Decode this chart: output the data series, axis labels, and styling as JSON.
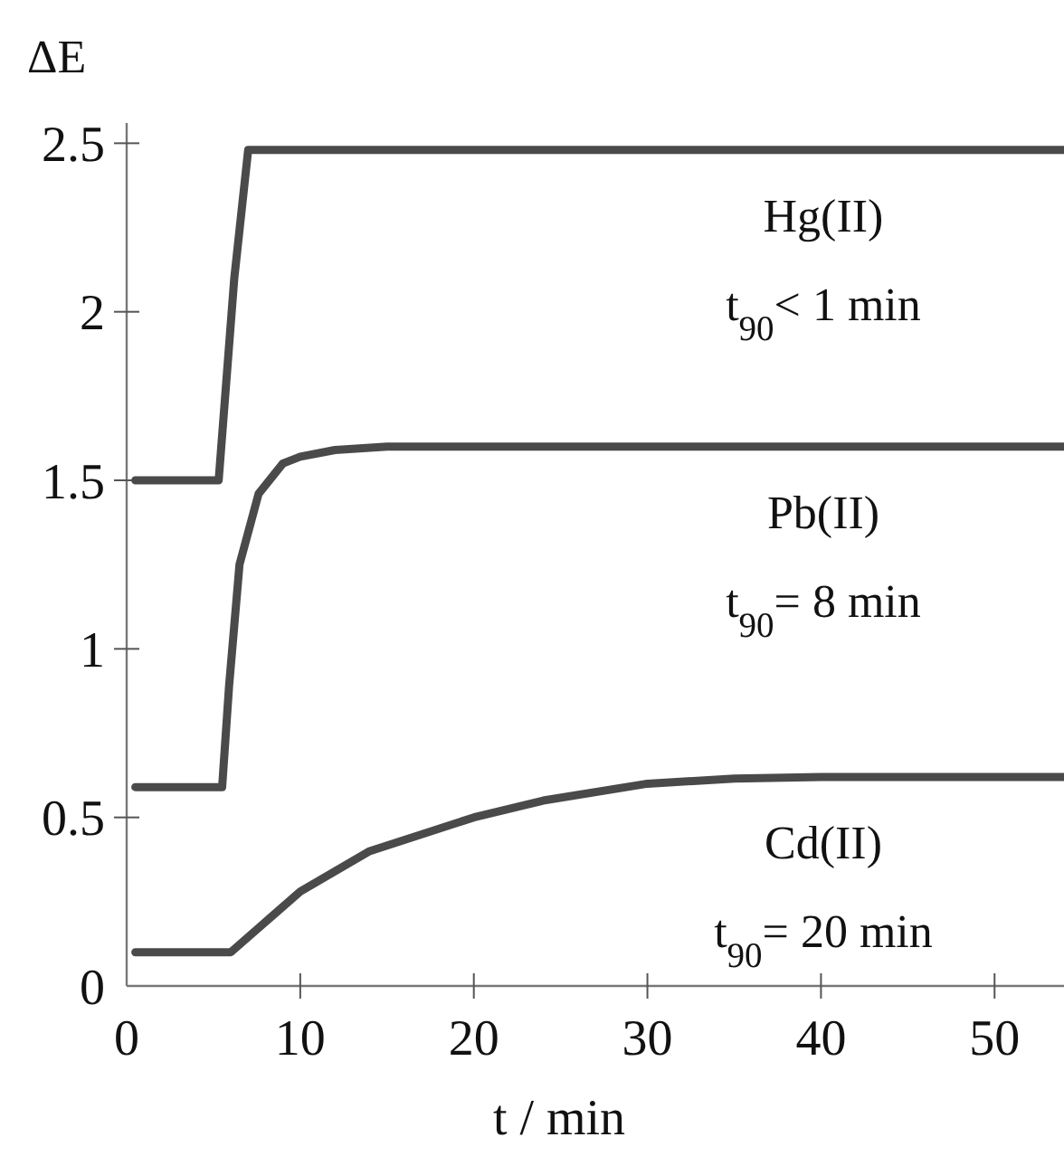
{
  "chart_data": {
    "type": "line",
    "xlabel": "t / min",
    "ylabel": "ΔE",
    "xlim": [
      0,
      54
    ],
    "ylim": [
      0,
      2.56
    ],
    "xticks": [
      0,
      10,
      20,
      30,
      40,
      50
    ],
    "yticks": [
      0,
      0.5,
      1,
      1.5,
      2,
      2.5
    ],
    "marker": "none",
    "line_style": "solid",
    "series": [
      {
        "name": "Hg(II)",
        "color": "#4a4a4a",
        "x": [
          0.5,
          5.3,
          6.2,
          7,
          10,
          20,
          30,
          40,
          54
        ],
        "values": [
          1.5,
          1.5,
          2.1,
          2.48,
          2.48,
          2.48,
          2.48,
          2.48,
          2.48
        ]
      },
      {
        "name": "Pb(II)",
        "color": "#4a4a4a",
        "x": [
          0.5,
          5.5,
          5.9,
          6.5,
          7.6,
          9,
          10,
          12,
          15,
          20,
          30,
          40,
          54
        ],
        "values": [
          0.59,
          0.59,
          0.89,
          1.25,
          1.46,
          1.55,
          1.57,
          1.59,
          1.6,
          1.6,
          1.6,
          1.6,
          1.6
        ]
      },
      {
        "name": "Cd(II)",
        "color": "#4a4a4a",
        "x": [
          0.5,
          6,
          8,
          10,
          14,
          20,
          24,
          30,
          35,
          40,
          54
        ],
        "values": [
          0.1,
          0.1,
          0.19,
          0.28,
          0.4,
          0.5,
          0.55,
          0.6,
          0.615,
          0.62,
          0.62
        ]
      }
    ],
    "annotations": [
      "t$_{90}$< 1 min",
      "t$_{90}$= 8 min",
      "t$_{90}$= 20 min"
    ]
  }
}
